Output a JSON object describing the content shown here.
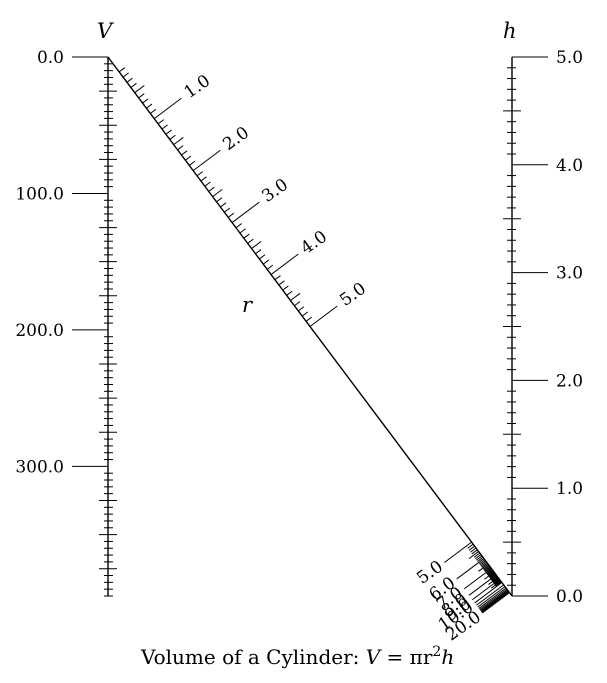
{
  "caption": {
    "prefix": "Volume of a Cylinder: ",
    "formula_v": "V",
    "formula_eq": " = πr",
    "formula_exp": "2",
    "formula_h": "h"
  },
  "scale_v": {
    "title": "V",
    "min": 0,
    "max": 395,
    "major_labels": [
      "0.0",
      "100.0",
      "200.0",
      "300.0"
    ],
    "major_values": [
      0,
      100,
      200,
      300
    ],
    "minor_step": 5,
    "medium_step": 25
  },
  "scale_h": {
    "title": "h",
    "min": 0,
    "max": 5,
    "major_labels": [
      "0.0",
      "1.0",
      "2.0",
      "3.0",
      "4.0",
      "5.0"
    ],
    "major_values": [
      0,
      1,
      2,
      3,
      4,
      5
    ],
    "minor_step": 0.1,
    "medium_step": 0.5
  },
  "scale_r": {
    "title": "r",
    "upper_labels": [
      "1.0",
      "2.0",
      "3.0",
      "4.0",
      "5.0"
    ],
    "upper_values": [
      1,
      2,
      3,
      4,
      5
    ],
    "lower_labels": [
      "5.0",
      "6.0",
      "7.0",
      "8.0",
      "9.0",
      "10.0",
      "20.0"
    ],
    "lower_values": [
      5,
      6,
      7,
      8,
      9,
      10,
      20
    ]
  }
}
